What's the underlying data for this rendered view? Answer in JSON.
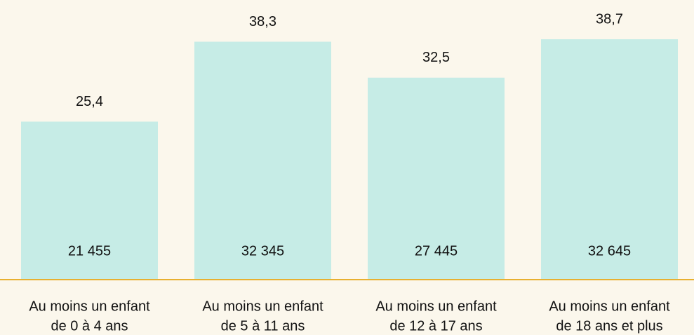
{
  "chart_data": {
    "type": "bar",
    "categories": [
      [
        "Au moins un enfant",
        "de 0 à 4 ans"
      ],
      [
        "Au moins un enfant",
        "de 5 à 11 ans"
      ],
      [
        "Au moins un enfant",
        "de 12 à 17 ans"
      ],
      [
        "Au moins un enfant",
        "de 18 ans et plus"
      ]
    ],
    "values": [
      25.4,
      38.3,
      32.5,
      38.7
    ],
    "value_labels": [
      "25,4",
      "38,3",
      "32,5",
      "38,7"
    ],
    "counts": [
      21455,
      32345,
      27445,
      32645
    ],
    "count_labels": [
      "21 455",
      "32 345",
      "27 445",
      "32 645"
    ],
    "color": "#c6ece6",
    "baseline_color": "#e8b030"
  }
}
